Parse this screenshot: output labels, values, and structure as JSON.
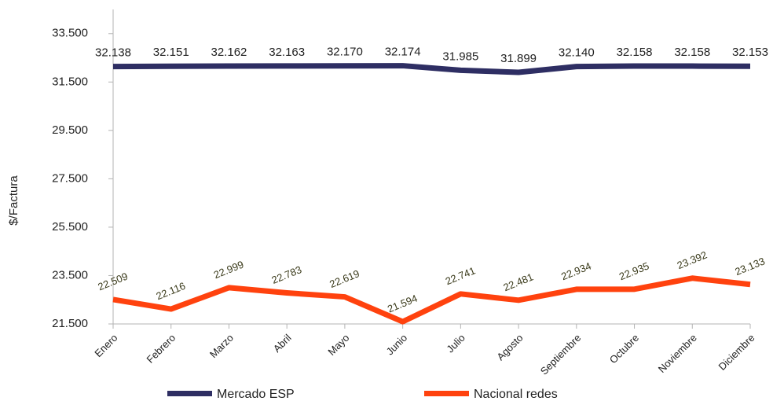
{
  "chart_data": {
    "type": "line",
    "y_label": "$/Factura",
    "categories": [
      "Enero",
      "Febrero",
      "Marzo",
      "Abril",
      "Mayo",
      "Junio",
      "Julio",
      "Agosto",
      "Septiembre",
      "Octubre",
      "Noviembre",
      "Diciembre"
    ],
    "series": [
      {
        "name": "Mercado ESP",
        "color": "#2e2e63",
        "values": [
          32138,
          32151,
          32162,
          32163,
          32170,
          32174,
          31985,
          31899,
          32140,
          32158,
          32158,
          32153
        ],
        "value_labels": [
          "32.138",
          "32.151",
          "32.162",
          "32.163",
          "32.170",
          "32.174",
          "31.985",
          "31.899",
          "32.140",
          "32.158",
          "32.158",
          "32.153"
        ]
      },
      {
        "name": "Nacional redes",
        "color": "#ff420e",
        "values": [
          22509,
          22116,
          22999,
          22783,
          22619,
          21594,
          22741,
          22481,
          22934,
          22935,
          23392,
          23133
        ],
        "value_labels": [
          "22.509",
          "22.116",
          "22.999",
          "22.783",
          "22.619",
          "21.594",
          "22.741",
          "22.481",
          "22.934",
          "22.935",
          "23.392",
          "23.133"
        ]
      }
    ],
    "ylim": [
      21500,
      34500
    ],
    "yticks": [
      {
        "value": 21500,
        "label": "21.500"
      },
      {
        "value": 23500,
        "label": "23.500"
      },
      {
        "value": 25500,
        "label": "25.500"
      },
      {
        "value": 27500,
        "label": "27.500"
      },
      {
        "value": 29500,
        "label": "29.500"
      },
      {
        "value": 31500,
        "label": "31.500"
      },
      {
        "value": 33500,
        "label": "33.500"
      }
    ],
    "legend": "bottom"
  }
}
